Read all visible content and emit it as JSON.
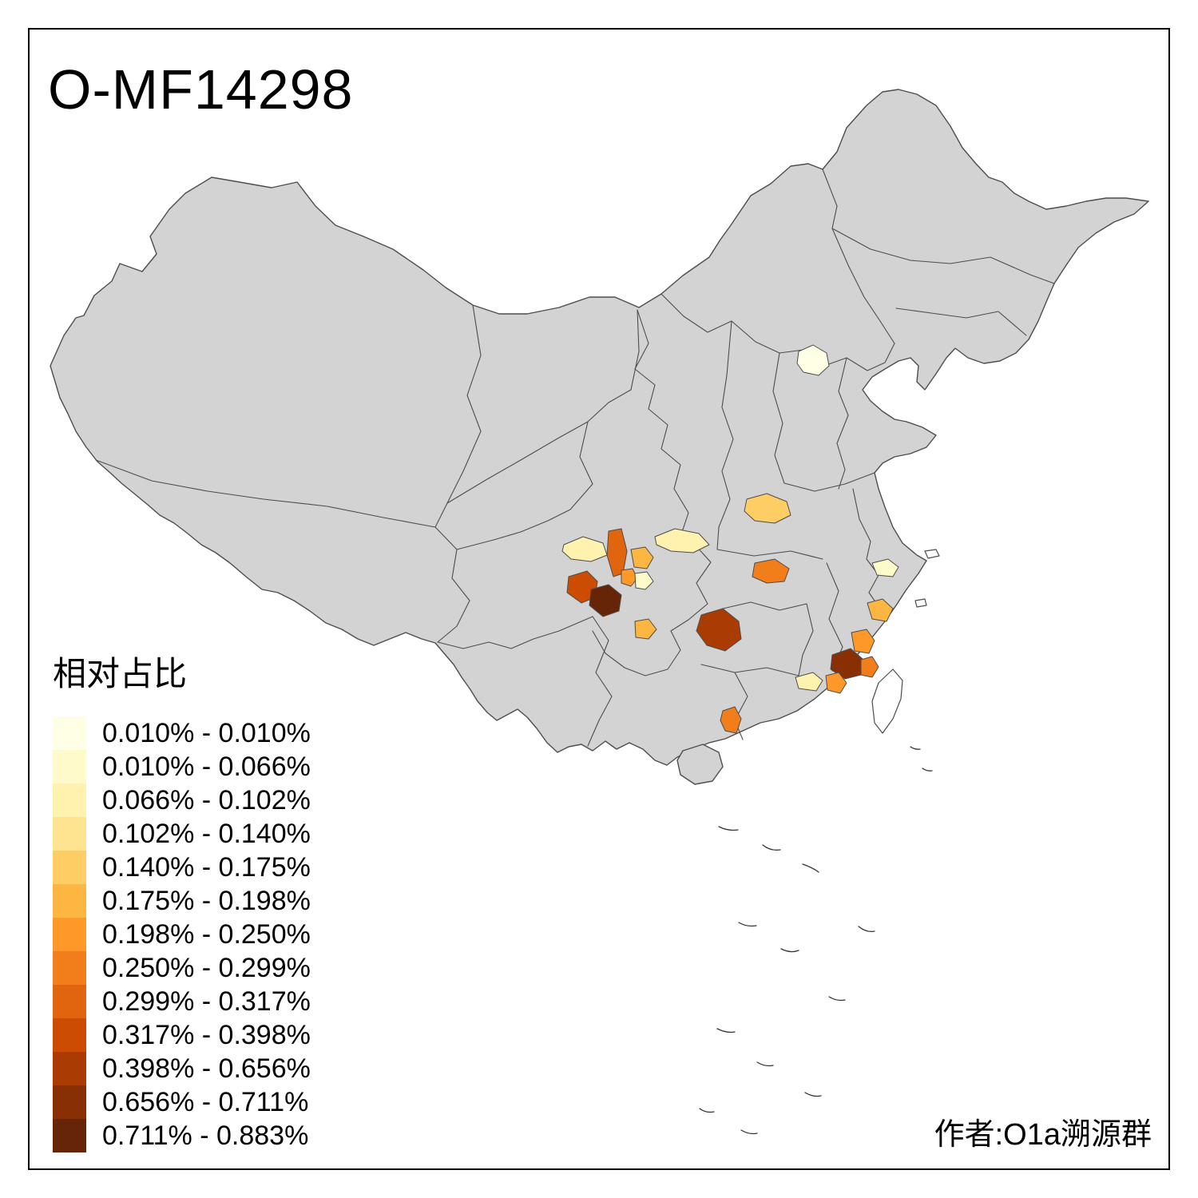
{
  "title": "O-MF14298",
  "credit": "作者:O1a溯源群",
  "legend": {
    "title": "相对占比",
    "bins": [
      {
        "label": "0.010% - 0.010%",
        "color": "#FFFFE5"
      },
      {
        "label": "0.010% - 0.066%",
        "color": "#FFFACA"
      },
      {
        "label": "0.066% - 0.102%",
        "color": "#FFF1AE"
      },
      {
        "label": "0.102% - 0.140%",
        "color": "#FEE391"
      },
      {
        "label": "0.140% - 0.175%",
        "color": "#FECE65"
      },
      {
        "label": "0.175% - 0.198%",
        "color": "#FEB642"
      },
      {
        "label": "0.198% - 0.250%",
        "color": "#FE9929"
      },
      {
        "label": "0.250% - 0.299%",
        "color": "#F27E1B"
      },
      {
        "label": "0.299% - 0.317%",
        "color": "#E1640E"
      },
      {
        "label": "0.317% - 0.398%",
        "color": "#CC4C02"
      },
      {
        "label": "0.398% - 0.656%",
        "color": "#AA3C03"
      },
      {
        "label": "0.656% - 0.711%",
        "color": "#882F05"
      },
      {
        "label": "0.711% - 0.883%",
        "color": "#662506"
      }
    ]
  },
  "map": {
    "land_color": "#D3D3D3",
    "border_color": "#4D4D4D",
    "background_color": "#FFFFFF",
    "regions": [
      {
        "id": "r1",
        "bin": 0
      },
      {
        "id": "r2",
        "bin": 4
      },
      {
        "id": "r3",
        "bin": 2
      },
      {
        "id": "r4",
        "bin": 2
      },
      {
        "id": "r5",
        "bin": 8
      },
      {
        "id": "r6",
        "bin": 5
      },
      {
        "id": "r7",
        "bin": 6
      },
      {
        "id": "r8",
        "bin": 1
      },
      {
        "id": "r9",
        "bin": 9
      },
      {
        "id": "r10",
        "bin": 12
      },
      {
        "id": "r11",
        "bin": 5
      },
      {
        "id": "r12",
        "bin": 7
      },
      {
        "id": "r13",
        "bin": 10
      },
      {
        "id": "r14",
        "bin": 1
      },
      {
        "id": "r15",
        "bin": 5
      },
      {
        "id": "r16",
        "bin": 6
      },
      {
        "id": "r17",
        "bin": 11
      },
      {
        "id": "r18",
        "bin": 7
      },
      {
        "id": "r19",
        "bin": 6
      },
      {
        "id": "r20",
        "bin": 2
      },
      {
        "id": "r21",
        "bin": 7
      }
    ]
  }
}
